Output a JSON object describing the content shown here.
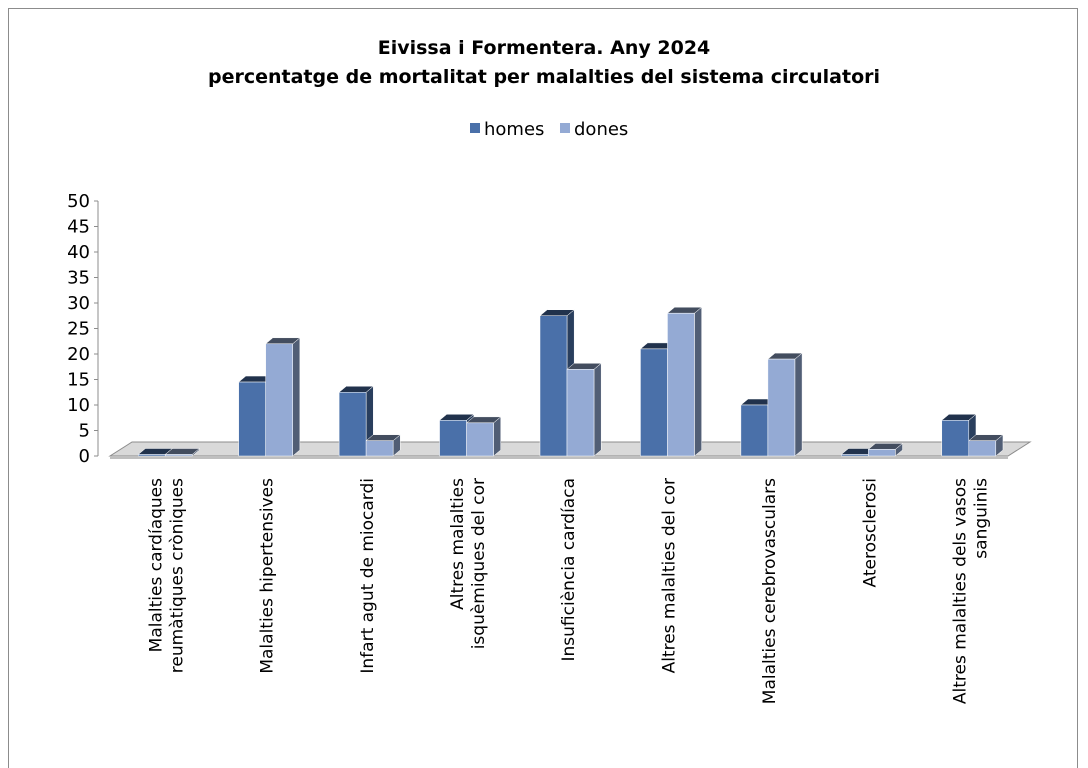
{
  "chart_data": {
    "type": "bar",
    "title": "Eivissa i Formentera. Any 2024",
    "subtitle": "percentatge de mortalitat per malalties del sistema circulatori",
    "legend_position": "top",
    "ylim": [
      0,
      50
    ],
    "yticks": [
      0,
      5,
      10,
      15,
      20,
      25,
      30,
      35,
      40,
      45,
      50
    ],
    "categories": [
      [
        "Malalties cardíaques",
        "reumàtiques cròniques"
      ],
      [
        "Malalties hipertensives"
      ],
      [
        "Infart agut de miocardi"
      ],
      [
        "Altres malalties",
        "isquèmiques del cor"
      ],
      [
        "Insuficiència cardíaca"
      ],
      [
        "Altres malalties del cor"
      ],
      [
        "Malalties cerebrovasculars"
      ],
      [
        "Aterosclerosi"
      ],
      [
        "Altres malalties dels vasos",
        "sanguinis"
      ]
    ],
    "series": [
      {
        "name": "homes",
        "color": "#4a70a9",
        "values": [
          0.3,
          14.5,
          12.5,
          7.0,
          27.5,
          21.0,
          10.0,
          0.3,
          7.0
        ]
      },
      {
        "name": "dones",
        "color": "#94aad4",
        "values": [
          0.3,
          22.0,
          3.0,
          6.5,
          17.0,
          28.0,
          19.0,
          1.3,
          3.0
        ]
      }
    ]
  }
}
